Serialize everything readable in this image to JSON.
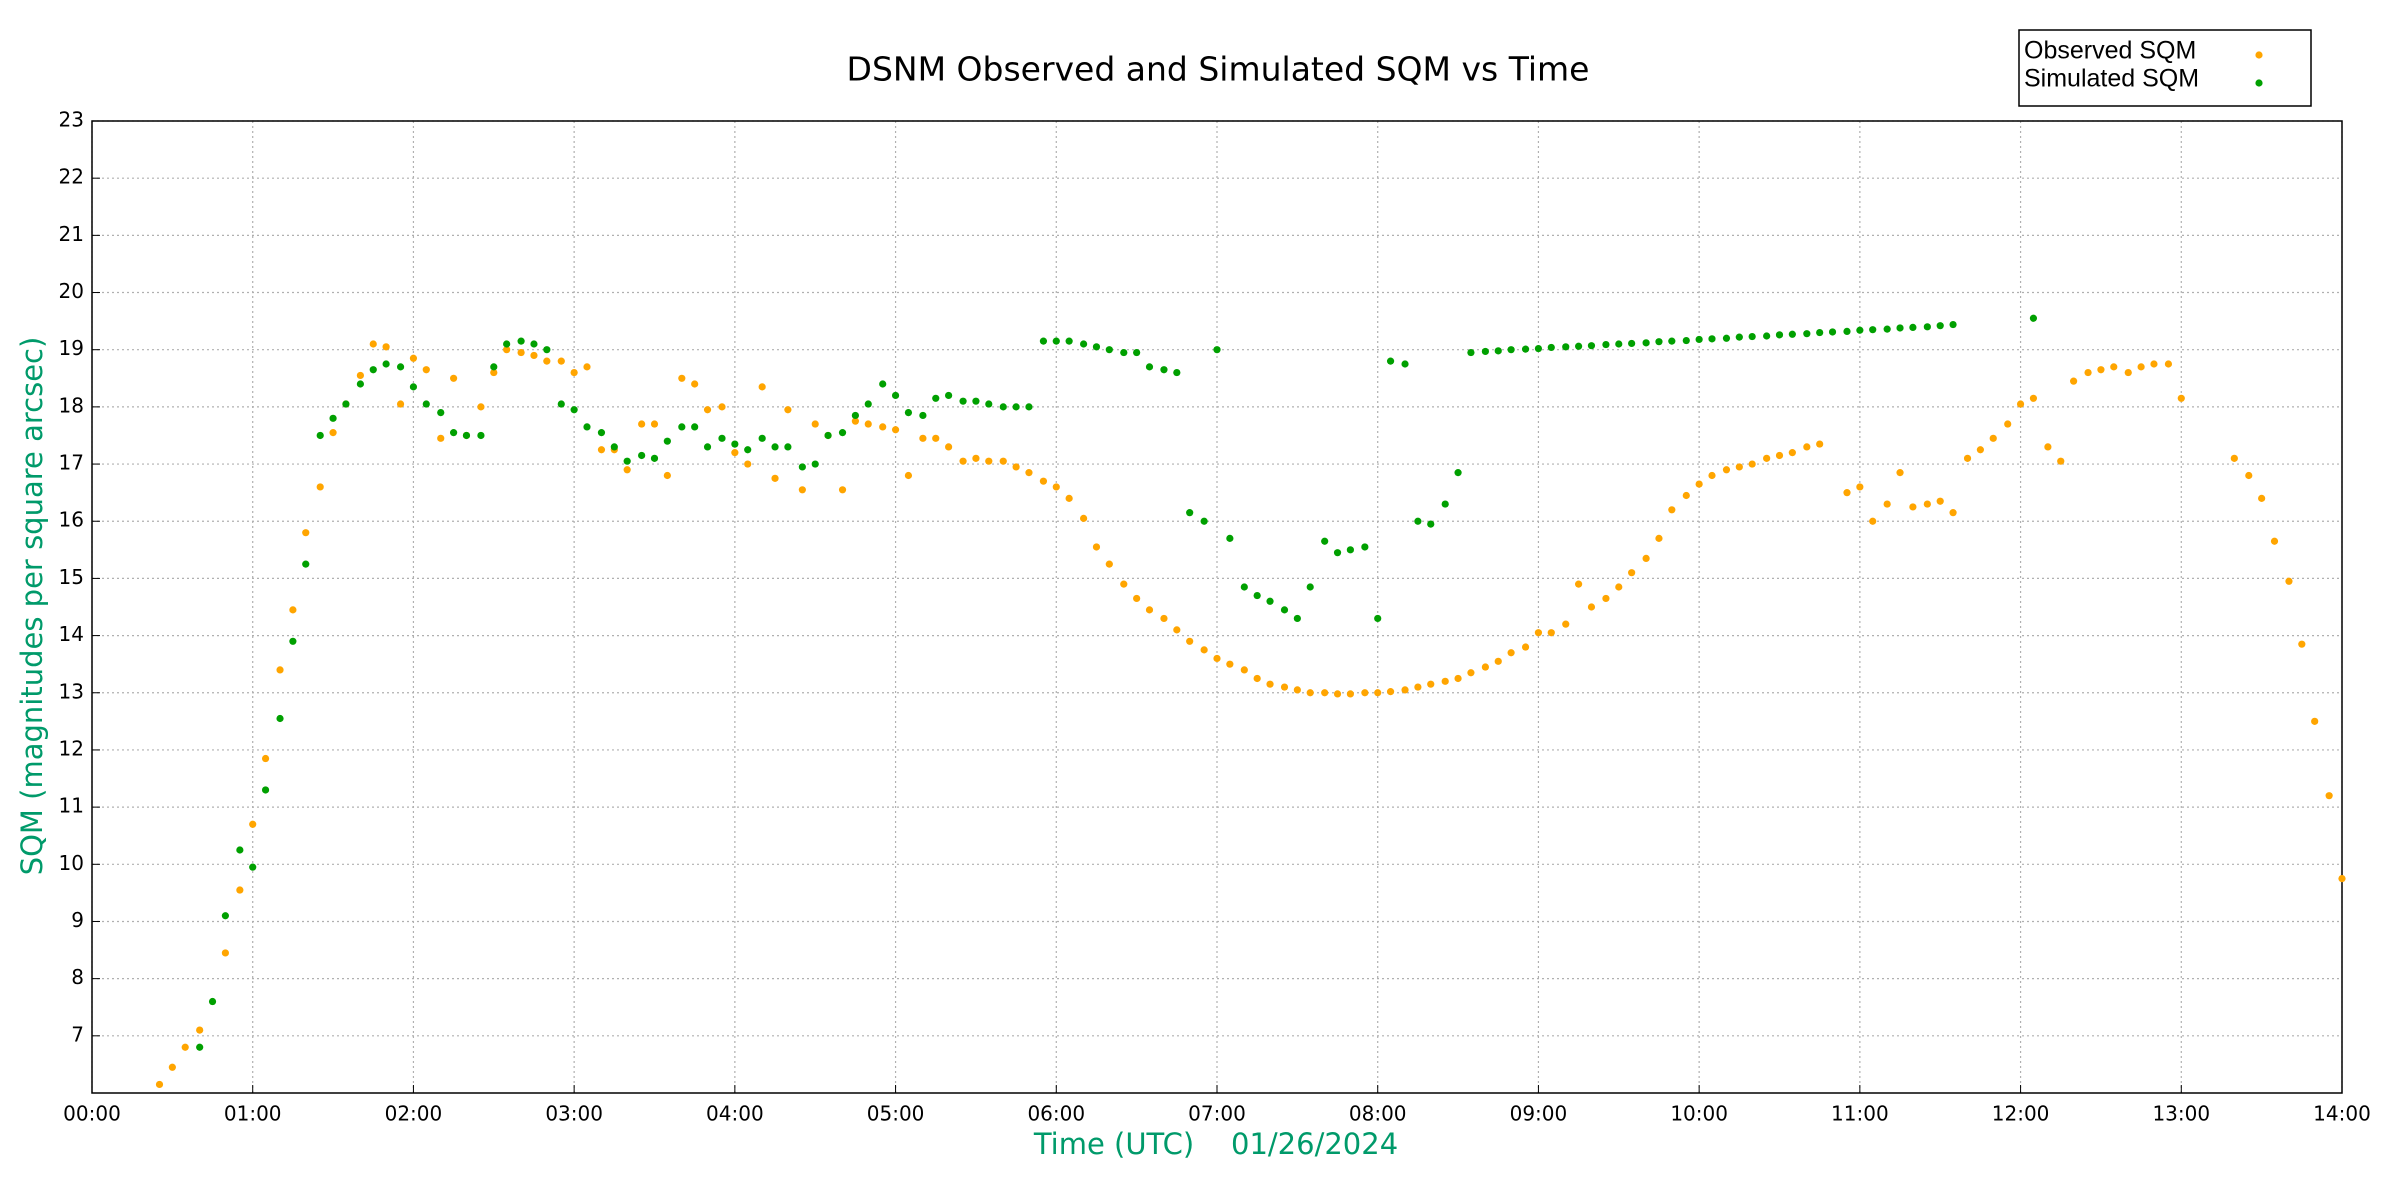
{
  "chart_data": {
    "type": "scatter",
    "title": "DSNM Observed and Simulated SQM vs Time",
    "x_label": "Time (UTC)    01/26/2024",
    "y_label": "SQM (magnitudes per square arcsec)",
    "xlim": [
      0,
      14
    ],
    "ylim": [
      6,
      23
    ],
    "grid": true,
    "legend": "upper right",
    "xticks": [
      {
        "value": 0,
        "label": "00:00"
      },
      {
        "value": 1,
        "label": "01:00"
      },
      {
        "value": 2,
        "label": "02:00"
      },
      {
        "value": 3,
        "label": "03:00"
      },
      {
        "value": 4,
        "label": "04:00"
      },
      {
        "value": 5,
        "label": "05:00"
      },
      {
        "value": 6,
        "label": "06:00"
      },
      {
        "value": 7,
        "label": "07:00"
      },
      {
        "value": 8,
        "label": "08:00"
      },
      {
        "value": 9,
        "label": "09:00"
      },
      {
        "value": 10,
        "label": "10:00"
      },
      {
        "value": 11,
        "label": "11:00"
      },
      {
        "value": 12,
        "label": "12:00"
      },
      {
        "value": 13,
        "label": "13:00"
      },
      {
        "value": 14,
        "label": "14:00"
      }
    ],
    "yticks": [
      7,
      8,
      9,
      10,
      11,
      12,
      13,
      14,
      15,
      16,
      17,
      18,
      19,
      20,
      21,
      22,
      23
    ],
    "series": [
      {
        "name": "Observed SQM",
        "color": "#ffa500",
        "x": [
          0.42,
          0.5,
          0.58,
          0.67,
          0.83,
          0.92,
          1.0,
          1.08,
          1.17,
          1.25,
          1.33,
          1.42,
          1.5,
          1.58,
          1.67,
          1.75,
          1.83,
          1.92,
          2.0,
          2.08,
          2.17,
          2.25,
          2.33,
          2.42,
          2.5,
          2.58,
          2.67,
          2.75,
          2.83,
          2.92,
          3.0,
          3.08,
          3.17,
          3.25,
          3.33,
          3.42,
          3.5,
          3.58,
          3.67,
          3.75,
          3.83,
          3.92,
          4.0,
          4.08,
          4.17,
          4.25,
          4.33,
          4.42,
          4.5,
          4.58,
          4.67,
          4.75,
          4.83,
          4.92,
          5.0,
          5.08,
          5.17,
          5.25,
          5.33,
          5.42,
          5.5,
          5.58,
          5.67,
          5.75,
          5.83,
          5.92,
          6.0,
          6.08,
          6.17,
          6.25,
          6.33,
          6.42,
          6.5,
          6.58,
          6.67,
          6.75,
          6.83,
          6.92,
          7.0,
          7.08,
          7.17,
          7.25,
          7.33,
          7.42,
          7.5,
          7.58,
          7.67,
          7.75,
          7.83,
          7.92,
          8.0,
          8.08,
          8.17,
          8.25,
          8.33,
          8.42,
          8.5,
          8.58,
          8.67,
          8.75,
          8.83,
          8.92,
          9.0,
          9.08,
          9.17,
          9.25,
          9.33,
          9.42,
          9.5,
          9.58,
          9.67,
          9.75,
          9.83,
          9.92,
          10.0,
          10.08,
          10.17,
          10.25,
          10.33,
          10.42,
          10.5,
          10.58,
          10.67,
          10.75,
          10.92,
          11.0,
          11.08,
          11.17,
          11.25,
          11.33,
          11.42,
          11.5,
          11.58,
          11.67,
          11.75,
          11.83,
          11.92,
          12.0,
          12.08,
          12.17,
          12.25,
          12.33,
          12.42,
          12.5,
          12.58,
          12.67,
          12.75,
          12.83,
          12.92,
          13.0,
          13.33,
          13.42,
          13.5,
          13.58,
          13.67,
          13.75,
          13.83,
          13.92,
          14.0
        ],
        "values": [
          6.15,
          6.45,
          6.8,
          7.1,
          8.45,
          9.55,
          10.7,
          11.85,
          13.4,
          14.45,
          15.8,
          16.6,
          17.55,
          18.05,
          18.55,
          19.1,
          19.05,
          18.05,
          18.85,
          18.65,
          17.45,
          18.5,
          17.5,
          18.0,
          18.6,
          19.0,
          18.95,
          18.9,
          18.8,
          18.8,
          18.6,
          18.7,
          17.25,
          17.25,
          16.9,
          17.7,
          17.7,
          16.8,
          18.5,
          18.4,
          17.95,
          18.0,
          17.2,
          17.0,
          18.35,
          16.75,
          17.95,
          16.55,
          17.7,
          17.5,
          16.55,
          17.75,
          17.7,
          17.65,
          17.6,
          16.8,
          17.45,
          17.45,
          17.3,
          17.05,
          17.1,
          17.05,
          17.05,
          16.95,
          16.85,
          16.7,
          16.6,
          16.4,
          16.05,
          15.55,
          15.25,
          14.9,
          14.65,
          14.45,
          14.3,
          14.1,
          13.9,
          13.75,
          13.6,
          13.5,
          13.4,
          13.25,
          13.15,
          13.1,
          13.05,
          13.0,
          13.0,
          12.98,
          12.98,
          13.0,
          13.0,
          13.02,
          13.05,
          13.1,
          13.15,
          13.2,
          13.25,
          13.35,
          13.45,
          13.55,
          13.7,
          13.8,
          14.05,
          14.05,
          14.2,
          14.9,
          14.5,
          14.65,
          14.85,
          15.1,
          15.35,
          15.7,
          16.2,
          16.45,
          16.65,
          16.8,
          16.9,
          16.95,
          17.0,
          17.1,
          17.15,
          17.2,
          17.3,
          17.35,
          16.5,
          16.6,
          16.0,
          16.3,
          16.85,
          16.25,
          16.3,
          16.35,
          16.15,
          17.1,
          17.25,
          17.45,
          17.7,
          18.05,
          18.15,
          17.3,
          17.05,
          18.45,
          18.6,
          18.65,
          18.7,
          18.6,
          18.7,
          18.75,
          18.75,
          18.15,
          17.1,
          16.8,
          16.4,
          15.65,
          14.95,
          13.85,
          12.5,
          11.2,
          9.75
        ]
      },
      {
        "name": "Simulated SQM",
        "color": "#00a000",
        "x": [
          0.67,
          0.75,
          0.83,
          0.92,
          1.0,
          1.08,
          1.17,
          1.25,
          1.33,
          1.42,
          1.5,
          1.58,
          1.67,
          1.75,
          1.83,
          1.92,
          2.0,
          2.08,
          2.17,
          2.25,
          2.33,
          2.42,
          2.5,
          2.58,
          2.67,
          2.75,
          2.83,
          2.92,
          3.0,
          3.08,
          3.17,
          3.25,
          3.33,
          3.42,
          3.5,
          3.58,
          3.67,
          3.75,
          3.83,
          3.92,
          4.0,
          4.08,
          4.17,
          4.25,
          4.33,
          4.42,
          4.5,
          4.58,
          4.67,
          4.75,
          4.83,
          4.92,
          5.0,
          5.08,
          5.17,
          5.25,
          5.33,
          5.42,
          5.5,
          5.58,
          5.67,
          5.75,
          5.83,
          5.92,
          6.0,
          6.08,
          6.17,
          6.25,
          6.33,
          6.42,
          6.5,
          6.58,
          6.67,
          6.75,
          6.83,
          6.92,
          7.0,
          7.08,
          7.17,
          7.25,
          7.33,
          7.42,
          7.5,
          7.58,
          7.67,
          7.75,
          7.83,
          7.92,
          8.0,
          8.08,
          8.17,
          8.25,
          8.33,
          8.42,
          8.5,
          8.58,
          8.67,
          8.75,
          8.83,
          8.92,
          9.0,
          9.08,
          9.17,
          9.25,
          9.33,
          9.42,
          9.5,
          9.58,
          9.67,
          9.75,
          9.83,
          9.92,
          10.0,
          10.08,
          10.17,
          10.25,
          10.33,
          10.42,
          10.5,
          10.58,
          10.67,
          10.75,
          10.83,
          10.92,
          11.0,
          11.08,
          11.17,
          11.25,
          11.33,
          11.42,
          11.5,
          11.58,
          12.08
        ],
        "values": [
          6.8,
          7.6,
          9.1,
          10.25,
          9.95,
          11.3,
          12.55,
          13.9,
          15.25,
          17.5,
          17.8,
          18.05,
          18.4,
          18.65,
          18.75,
          18.7,
          18.35,
          18.05,
          17.9,
          17.55,
          17.5,
          17.5,
          18.7,
          19.1,
          19.15,
          19.1,
          19.0,
          18.05,
          17.95,
          17.65,
          17.55,
          17.3,
          17.05,
          17.15,
          17.1,
          17.4,
          17.65,
          17.65,
          17.3,
          17.45,
          17.35,
          17.25,
          17.45,
          17.3,
          17.3,
          16.95,
          17.0,
          17.5,
          17.55,
          17.85,
          18.05,
          18.4,
          18.2,
          17.9,
          17.85,
          18.15,
          18.2,
          18.1,
          18.1,
          18.05,
          18.0,
          18.0,
          18.0,
          19.15,
          19.15,
          19.15,
          19.1,
          19.05,
          19.0,
          18.95,
          18.95,
          18.7,
          18.65,
          18.6,
          16.15,
          16.0,
          19.0,
          15.7,
          14.85,
          14.7,
          14.6,
          14.45,
          14.3,
          14.85,
          15.65,
          15.45,
          15.5,
          15.55,
          14.3,
          18.8,
          18.75,
          16.0,
          15.95,
          16.3,
          16.85,
          18.95,
          18.97,
          18.98,
          19.0,
          19.01,
          19.02,
          19.04,
          19.05,
          19.06,
          19.07,
          19.09,
          19.1,
          19.11,
          19.12,
          19.14,
          19.15,
          19.16,
          19.18,
          19.19,
          19.2,
          19.22,
          19.23,
          19.24,
          19.26,
          19.27,
          19.28,
          19.3,
          19.31,
          19.32,
          19.34,
          19.35,
          19.36,
          19.38,
          19.39,
          19.4,
          19.42,
          19.44,
          19.55
        ]
      }
    ]
  }
}
